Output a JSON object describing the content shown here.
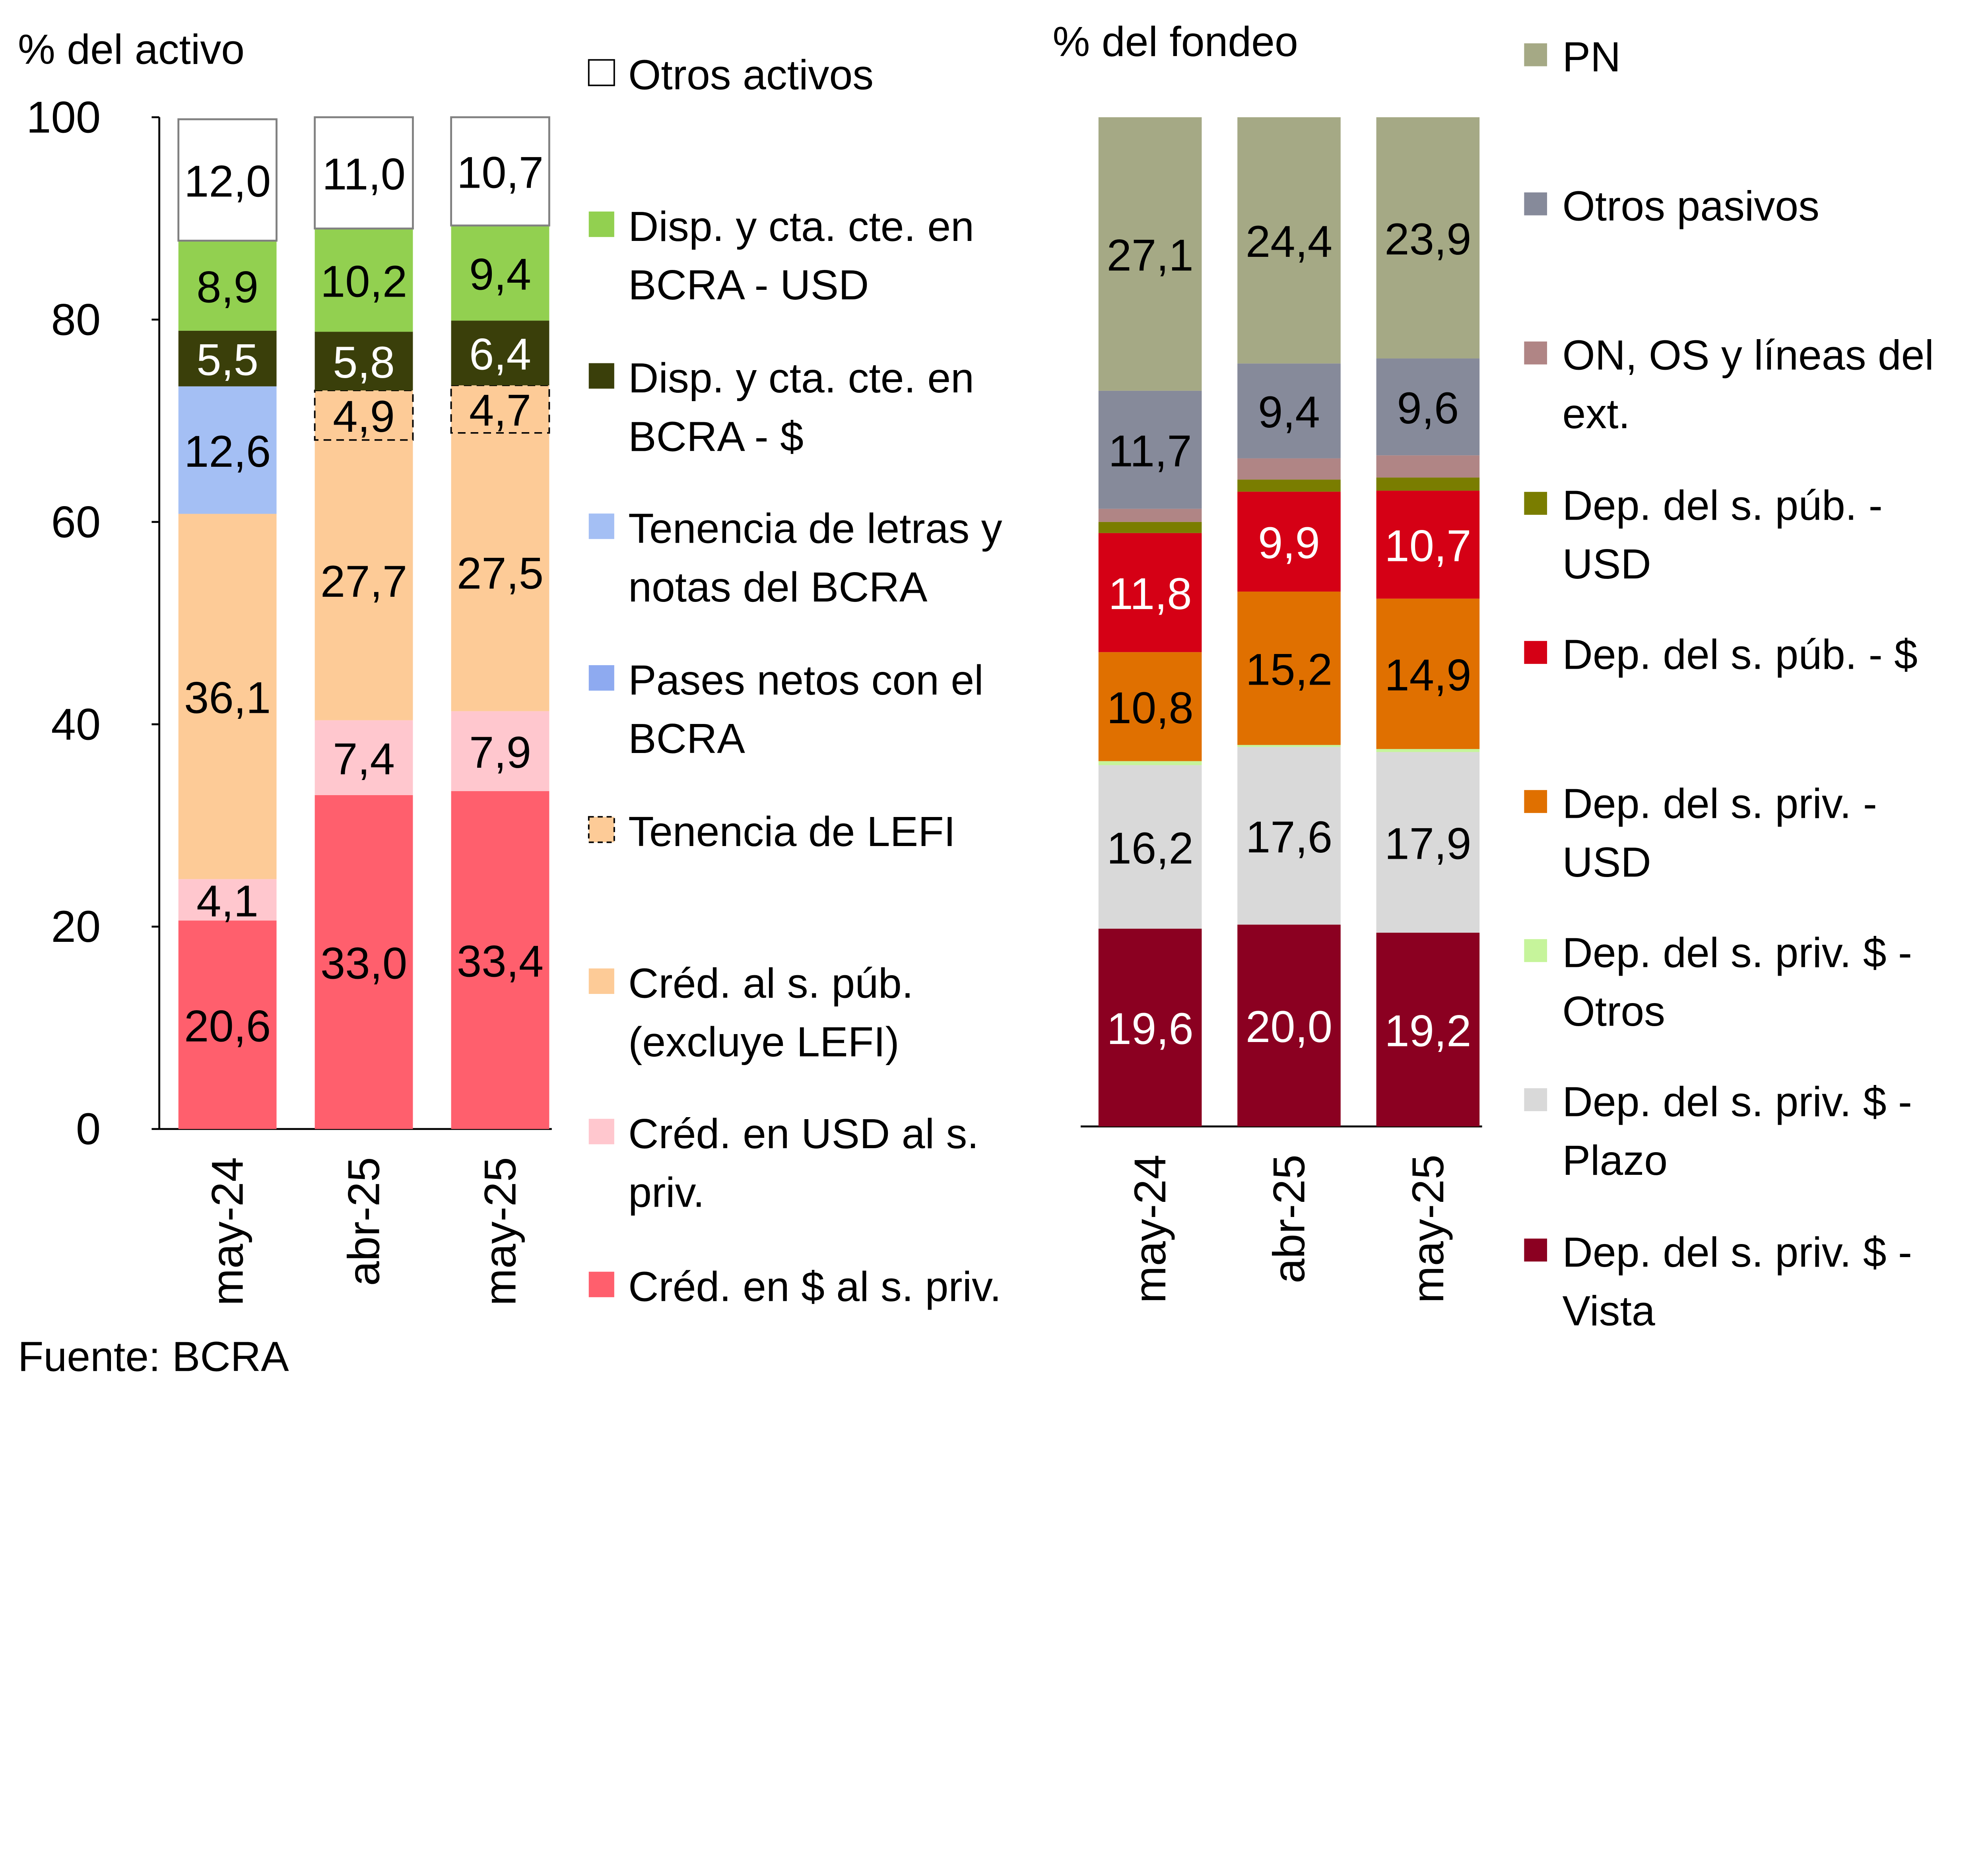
{
  "chart_data": [
    {
      "type": "bar",
      "stacked": true,
      "ylabel": "% del activo",
      "ylim": [
        0,
        100
      ],
      "yticks": [
        0,
        20,
        40,
        60,
        80,
        100
      ],
      "categories": [
        "may-24",
        "abr-25",
        "may-25"
      ],
      "legend_placement": "right",
      "series": [
        {
          "name": "Créd. en $ al s. priv.",
          "legend_lines": [
            "Créd. en $ al s. priv."
          ],
          "color": "#ff5f6d",
          "values": [
            20.6,
            33.0,
            33.4
          ],
          "labels": [
            "20,6",
            "33,0",
            "33,4"
          ]
        },
        {
          "name": "Créd. en USD al s. priv.",
          "legend_lines": [
            "Créd. en USD al s.",
            "priv."
          ],
          "color": "#ffc7ce",
          "values": [
            4.1,
            7.4,
            7.9
          ],
          "labels": [
            "4,1",
            "7,4",
            "7,9"
          ]
        },
        {
          "name": "Créd. al s. púb. (excluye LEFI)",
          "legend_lines": [
            "Créd. al s. púb.",
            "(excluye LEFI)"
          ],
          "color": "#fdcb97",
          "values": [
            36.1,
            27.7,
            27.5
          ],
          "labels": [
            "36,1",
            "27,7",
            "27,5"
          ]
        },
        {
          "name": "Tenencia de LEFI",
          "legend_lines": [
            "Tenencia de LEFI"
          ],
          "color": "#fdcb97",
          "dashed": true,
          "values": [
            0,
            4.9,
            4.7
          ],
          "labels": [
            "",
            "4,9",
            "4,7"
          ]
        },
        {
          "name": "Pases netos con el BCRA",
          "legend_lines": [
            "Pases netos con el",
            "BCRA"
          ],
          "color": "#8eaaf0",
          "values": [
            0,
            0,
            0
          ],
          "labels": [
            "",
            "",
            ""
          ]
        },
        {
          "name": "Tenencia de letras y notas del BCRA",
          "legend_lines": [
            "Tenencia de letras y",
            "notas del BCRA"
          ],
          "color": "#a4bff4",
          "values": [
            12.6,
            0,
            0
          ],
          "labels": [
            "12,6",
            "",
            ""
          ]
        },
        {
          "name": "Disp. y cta. cte. en BCRA - $",
          "legend_lines": [
            "Disp. y cta. cte. en",
            "BCRA - $"
          ],
          "color": "#3a3f0a",
          "values": [
            5.5,
            5.8,
            6.4
          ],
          "labels": [
            "5,5",
            "5,8",
            "6,4"
          ],
          "label_color": "#ffffff"
        },
        {
          "name": "Disp. y cta. cte. en BCRA - USD",
          "legend_lines": [
            "Disp. y cta. cte. en",
            "BCRA - USD"
          ],
          "color": "#92d050",
          "values": [
            8.9,
            10.2,
            9.4
          ],
          "labels": [
            "8,9",
            "10,2",
            "9,4"
          ]
        },
        {
          "name": "Otros activos",
          "legend_lines": [
            "Otros activos"
          ],
          "color": "#ffffff",
          "outline": true,
          "values": [
            12.0,
            11.0,
            10.7
          ],
          "labels": [
            "12,0",
            "11,0",
            "10,7"
          ]
        }
      ]
    },
    {
      "type": "bar",
      "stacked": true,
      "ylabel": "% del fondeo",
      "ylim": [
        0,
        100
      ],
      "categories": [
        "may-24",
        "abr-25",
        "may-25"
      ],
      "legend_placement": "right",
      "series": [
        {
          "name": "Dep. del s. priv. $ - Vista",
          "legend_lines": [
            "Dep. del s. priv. $ -",
            "Vista"
          ],
          "color": "#8b0021",
          "values": [
            19.6,
            20.0,
            19.2
          ],
          "labels": [
            "19,6",
            "20,0",
            "19,2"
          ],
          "label_color": "#ffffff"
        },
        {
          "name": "Dep. del s. priv. $ - Plazo",
          "legend_lines": [
            "Dep. del s. priv. $ -",
            "Plazo"
          ],
          "color": "#d9d9d9",
          "values": [
            16.2,
            17.6,
            17.9
          ],
          "labels": [
            "16,2",
            "17,6",
            "17,9"
          ]
        },
        {
          "name": "Dep. del s. priv. $ - Otros",
          "legend_lines": [
            "Dep. del s. priv. $ -",
            "Otros"
          ],
          "color": "#c6f49b",
          "values": [
            0.4,
            0.2,
            0.3
          ],
          "labels": [
            "",
            "",
            ""
          ]
        },
        {
          "name": "Dep. del s. priv. - USD",
          "legend_lines": [
            "Dep. del s. priv. -",
            "USD"
          ],
          "color": "#e07000",
          "values": [
            10.8,
            15.2,
            14.9
          ],
          "labels": [
            "10,8",
            "15,2",
            "14,9"
          ]
        },
        {
          "name": "Dep. del s. púb. - $",
          "legend_lines": [
            "Dep. del s. púb. - $"
          ],
          "color": "#d50015",
          "values": [
            11.8,
            9.9,
            10.7
          ],
          "labels": [
            "11,8",
            "9,9",
            "10,7"
          ],
          "label_color": "#ffffff"
        },
        {
          "name": "Dep. del s. púb. - USD",
          "legend_lines": [
            "Dep. del s. púb. -",
            "USD"
          ],
          "color": "#7a7d00",
          "values": [
            1.1,
            1.2,
            1.3
          ],
          "labels": [
            "",
            "",
            ""
          ]
        },
        {
          "name": "ON, OS y líneas del ext.",
          "legend_lines": [
            "ON, OS y líneas del",
            "ext."
          ],
          "color": "#b08585",
          "values": [
            1.3,
            2.1,
            2.2
          ],
          "labels": [
            "",
            "",
            ""
          ]
        },
        {
          "name": "Otros pasivos",
          "legend_lines": [
            "Otros pasivos"
          ],
          "color": "#868a9a",
          "values": [
            11.7,
            9.4,
            9.6
          ],
          "labels": [
            "11,7",
            "9,4",
            "9,6"
          ]
        },
        {
          "name": "PN",
          "legend_lines": [
            "PN"
          ],
          "color": "#a5a985",
          "values": [
            27.1,
            24.4,
            23.9
          ],
          "labels": [
            "27,1",
            "24,4",
            "23,9"
          ]
        }
      ]
    }
  ],
  "source": "Fuente: BCRA"
}
